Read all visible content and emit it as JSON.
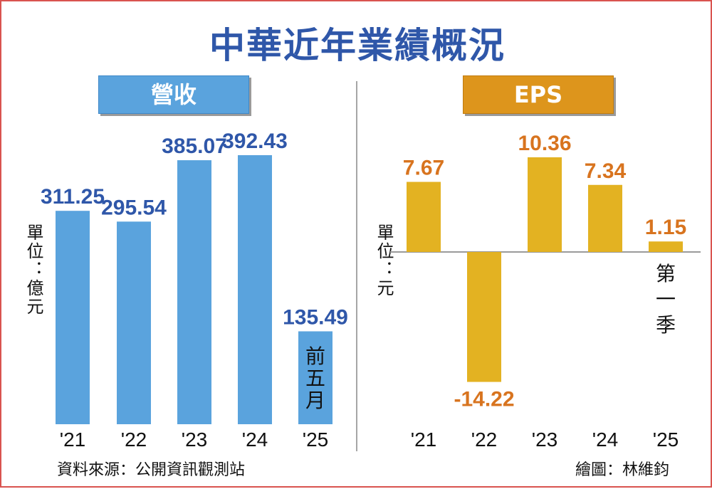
{
  "title": "中華近年業績概況",
  "source": "資料來源：公開資訊觀測站",
  "credit": "繪圖：林維鈞",
  "colors": {
    "title": "#2f57a9",
    "revenue_bar": "#5aa3dd",
    "revenue_label": "#2f57a9",
    "eps_bar": "#e3b222",
    "eps_label": "#d8741f",
    "eps_panel": "#dd951c"
  },
  "chart_data": [
    {
      "type": "bar",
      "title": "營收",
      "ylabel": "單位：億元",
      "categories": [
        "'21",
        "'22",
        "'23",
        "'24",
        "'25"
      ],
      "values": [
        311.25,
        295.54,
        385.07,
        392.43,
        135.49
      ],
      "value_labels": [
        "311.25",
        "295.54",
        "385.07",
        "392.43",
        "135.49"
      ],
      "annotations": [
        {
          "category": "'25",
          "text": "前五月"
        }
      ],
      "ylim": [
        0,
        392.43
      ],
      "grid": false
    },
    {
      "type": "bar",
      "title": "EPS",
      "ylabel": "單位：元",
      "categories": [
        "'21",
        "'22",
        "'23",
        "'24",
        "'25"
      ],
      "values": [
        7.67,
        -14.22,
        10.36,
        7.34,
        1.15
      ],
      "value_labels": [
        "7.67",
        "-14.22",
        "10.36",
        "7.34",
        "1.15"
      ],
      "annotations": [
        {
          "category": "'25",
          "text": "第一季"
        }
      ],
      "ylim": [
        -14.22,
        10.36
      ],
      "grid": false
    }
  ]
}
